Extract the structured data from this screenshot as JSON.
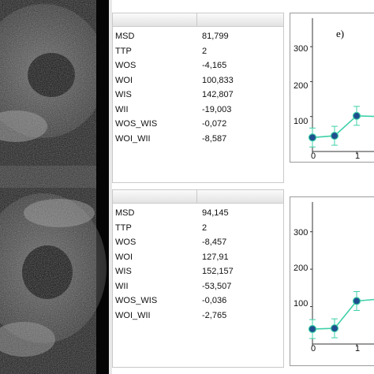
{
  "panels": [
    {
      "rows": [
        {
          "key": "MSD",
          "value": "81,799"
        },
        {
          "key": "TTP",
          "value": "2"
        },
        {
          "key": "WOS",
          "value": "-4,165"
        },
        {
          "key": "WOI",
          "value": "100,833"
        },
        {
          "key": "WIS",
          "value": "142,807"
        },
        {
          "key": "WII",
          "value": "-19,003"
        },
        {
          "key": "WOS_WIS",
          "value": "-0,072"
        },
        {
          "key": "WOI_WII",
          "value": "-8,587"
        }
      ]
    },
    {
      "rows": [
        {
          "key": "MSD",
          "value": "94,145"
        },
        {
          "key": "TTP",
          "value": "2"
        },
        {
          "key": "WOS",
          "value": "-8,457"
        },
        {
          "key": "WOI",
          "value": "127,91"
        },
        {
          "key": "WIS",
          "value": "152,157"
        },
        {
          "key": "WII",
          "value": "-53,507"
        },
        {
          "key": "WOS_WIS",
          "value": "-0,036"
        },
        {
          "key": "WOI_WII",
          "value": "-2,765"
        }
      ]
    }
  ],
  "charts": [
    {
      "label": "e)",
      "y_ticks": [
        "300",
        "200",
        "100"
      ],
      "x_ticks": [
        "0",
        "1"
      ],
      "series_color": "#3fd0a8",
      "point_color": "#1f4f8f"
    },
    {
      "label": "",
      "y_ticks": [
        "300",
        "200",
        "100"
      ],
      "x_ticks": [
        "0",
        "1"
      ],
      "series_color": "#3fd0a8",
      "point_color": "#1f4f8f"
    }
  ],
  "chart_data": [
    {
      "type": "line",
      "x": [
        0,
        0.5,
        1,
        1.5
      ],
      "y": [
        40,
        45,
        102,
        100
      ],
      "ylim": [
        0,
        350
      ],
      "y_ticks": [
        100,
        200,
        300
      ],
      "x_ticks": [
        0,
        1
      ]
    },
    {
      "type": "line",
      "x": [
        0,
        0.5,
        1,
        1.5
      ],
      "y": [
        40,
        42,
        115,
        120
      ],
      "ylim": [
        0,
        350
      ],
      "y_ticks": [
        100,
        200,
        300
      ],
      "x_ticks": [
        0,
        1
      ]
    }
  ]
}
